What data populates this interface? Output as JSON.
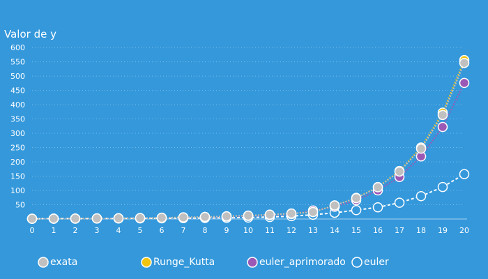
{
  "chart_data": {
    "type": "line",
    "title": "Valor de y",
    "xlabel": "",
    "ylabel": "",
    "x": [
      0,
      1,
      2,
      3,
      4,
      5,
      6,
      7,
      8,
      9,
      10,
      11,
      12,
      13,
      14,
      15,
      16,
      17,
      18,
      19,
      20
    ],
    "xlim": [
      0,
      20
    ],
    "ylim": [
      0,
      610
    ],
    "y_ticks": [
      50,
      100,
      150,
      200,
      250,
      300,
      350,
      400,
      450,
      500,
      550,
      600
    ],
    "grid": true,
    "legend_position": "bottom",
    "series": [
      {
        "name": "exata",
        "color": "#c0c0c0",
        "line_style": "dotted",
        "marker": "filled-circle",
        "values": [
          1,
          1.3,
          1.6,
          2.1,
          2.7,
          3.5,
          4.5,
          5.8,
          7.4,
          9.4,
          12.0,
          15.2,
          19.3,
          24.5,
          47.5,
          73,
          111,
          166,
          246,
          364,
          546
        ]
      },
      {
        "name": "Runge_Kutta",
        "color": "#f1c40f",
        "line_style": "dotted",
        "marker": "filled-circle",
        "values": [
          1,
          1.3,
          1.6,
          2.1,
          2.7,
          3.5,
          4.5,
          5.8,
          7.4,
          9.4,
          12.0,
          15.2,
          19.3,
          24.5,
          47.5,
          74,
          112,
          168,
          250,
          372,
          556
        ]
      },
      {
        "name": "euler_aprimorado",
        "color": "#9b59b6",
        "line_style": "dotted",
        "marker": "filled-circle",
        "values": [
          1,
          1.2,
          1.5,
          2.0,
          2.5,
          3.2,
          4.1,
          5.2,
          6.6,
          8.4,
          10.6,
          13.4,
          17.0,
          30,
          43,
          66,
          100,
          147,
          219,
          322,
          476
        ]
      },
      {
        "name": "euler",
        "color": "#3498db",
        "line_style": "dashed",
        "marker": "open-circle",
        "values": [
          1,
          1.1,
          1.3,
          1.5,
          1.8,
          2.1,
          2.5,
          3.0,
          3.6,
          4.3,
          5.1,
          7,
          10,
          15,
          22,
          31,
          41,
          57,
          80,
          112,
          157
        ]
      }
    ]
  }
}
